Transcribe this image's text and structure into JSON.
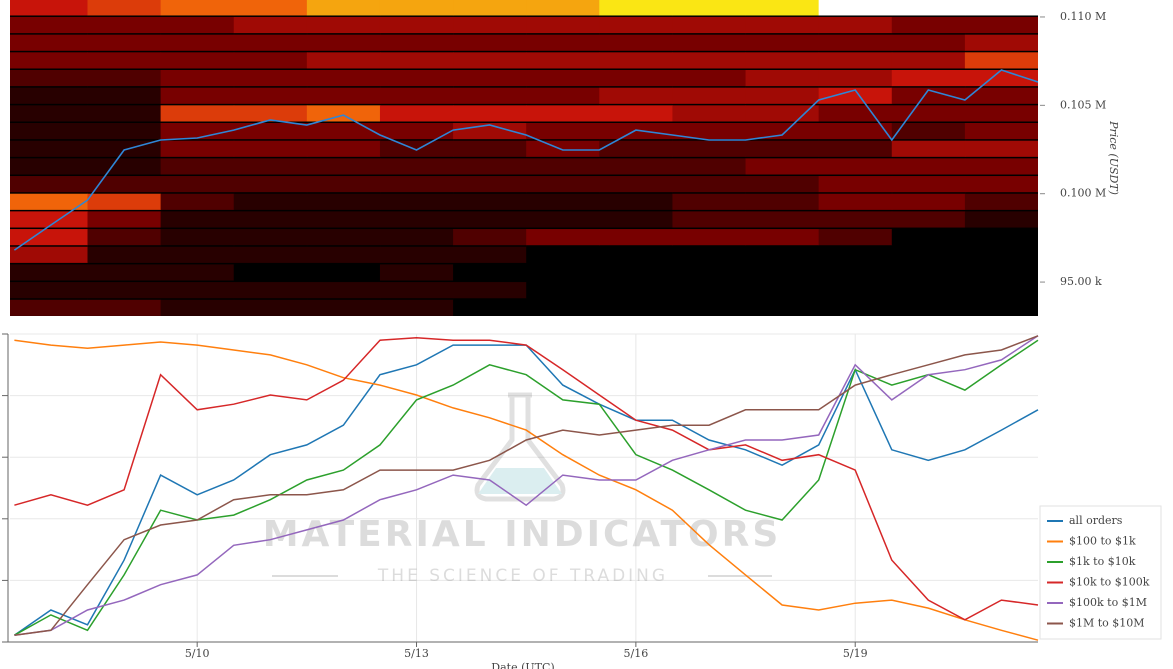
{
  "chart_data": [
    {
      "type": "heatmap",
      "y_label": "Price (USDT)",
      "xlim": [
        7.44,
        21.5
      ],
      "ylim": [
        93080,
        110960
      ],
      "yticks": [
        {
          "value": 95000,
          "label": "95.00 k"
        },
        {
          "value": 100000,
          "label": "0.100 M"
        },
        {
          "value": 105000,
          "label": "0.105 M"
        },
        {
          "value": 110000,
          "label": "0.110 M"
        }
      ],
      "x_bins": [
        7.44,
        8.5,
        9.5,
        10.5,
        11.5,
        12.5,
        13.5,
        14.5,
        15.5,
        16.5,
        17.5,
        18.5,
        19.5,
        20.5,
        21.5
      ],
      "y_bins": [
        93000,
        94000,
        95000,
        96000,
        97000,
        98000,
        99000,
        100000,
        101000,
        102000,
        103000,
        104000,
        105000,
        106000,
        107000,
        108000,
        109000,
        110000,
        111000
      ],
      "values": [
        [
          2,
          2,
          1,
          1,
          1,
          1,
          0,
          0,
          0,
          0,
          0,
          0,
          0,
          0
        ],
        [
          1,
          1,
          1,
          1,
          1,
          1,
          1,
          0,
          0,
          0,
          0,
          0,
          0,
          0
        ],
        [
          1,
          1,
          1,
          0,
          0,
          1,
          0,
          0,
          0,
          0,
          0,
          0,
          0,
          0
        ],
        [
          4,
          1,
          1,
          1,
          1,
          1,
          1,
          0,
          0,
          0,
          0,
          0,
          0,
          0
        ],
        [
          5,
          2,
          1,
          1,
          1,
          1,
          2,
          3,
          3,
          3,
          3,
          2,
          0,
          0
        ],
        [
          5,
          3,
          1,
          1,
          1,
          1,
          1,
          1,
          1,
          2,
          2,
          2,
          2,
          1
        ],
        [
          7,
          6,
          2,
          1,
          1,
          1,
          1,
          1,
          1,
          2,
          2,
          3,
          3,
          2
        ],
        [
          2,
          2,
          2,
          2,
          2,
          2,
          2,
          2,
          2,
          2,
          2,
          3,
          3,
          3
        ],
        [
          1,
          1,
          2,
          2,
          2,
          2,
          2,
          2,
          2,
          2,
          3,
          3,
          3,
          3
        ],
        [
          1,
          1,
          3,
          3,
          3,
          2,
          2,
          3,
          2,
          2,
          2,
          2,
          4,
          4
        ],
        [
          1,
          1,
          3,
          3,
          3,
          3,
          4,
          3,
          3,
          3,
          3,
          3,
          2,
          3
        ],
        [
          1,
          1,
          6,
          6,
          7,
          5,
          5,
          5,
          5,
          4,
          4,
          3,
          3,
          3
        ],
        [
          1,
          1,
          3,
          3,
          3,
          3,
          3,
          3,
          4,
          4,
          4,
          5,
          3,
          3
        ],
        [
          2,
          2,
          3,
          3,
          3,
          3,
          3,
          3,
          3,
          3,
          4,
          4,
          5,
          5
        ],
        [
          3,
          3,
          3,
          3,
          4,
          4,
          4,
          4,
          4,
          4,
          4,
          4,
          4,
          6
        ],
        [
          3,
          3,
          3,
          3,
          3,
          3,
          3,
          3,
          3,
          3,
          3,
          3,
          3,
          4
        ],
        [
          3,
          3,
          3,
          4,
          4,
          4,
          4,
          4,
          4,
          4,
          4,
          4,
          3,
          3
        ],
        [
          5,
          6,
          7,
          7,
          8,
          8,
          8,
          8,
          9,
          9,
          9,
          10,
          10,
          10
        ]
      ],
      "value_max": 10,
      "line": {
        "color": "#2f86d6",
        "x": [
          7.5,
          8,
          8.5,
          9,
          9.5,
          10,
          10.5,
          11,
          11.5,
          12,
          12.5,
          13,
          13.5,
          14,
          14.5,
          15,
          15.5,
          16,
          16.5,
          17,
          17.5,
          18,
          18.5,
          19,
          19.5,
          20,
          20.5,
          21,
          21.5
        ],
        "values": [
          96810,
          98230,
          99640,
          102470,
          103040,
          103150,
          103600,
          104170,
          103890,
          104450,
          103320,
          102470,
          103600,
          103890,
          103320,
          102470,
          102470,
          103600,
          103320,
          103040,
          103040,
          103320,
          105300,
          105870,
          103040,
          105870,
          105300,
          107000,
          106320
        ]
      }
    },
    {
      "type": "line",
      "x_label": "Date (UTC)",
      "legend": "right",
      "xlim": [
        7.44,
        21.5
      ],
      "ylim": [
        0,
        5
      ],
      "yticks": [
        0,
        1,
        2,
        3,
        4,
        5
      ],
      "grid": true,
      "xticks": [
        {
          "value": 10,
          "label": "5/10"
        },
        {
          "value": 13,
          "label": "5/13"
        },
        {
          "value": 16,
          "label": "5/16"
        },
        {
          "value": 19,
          "label": "5/19"
        }
      ],
      "watermark": {
        "title": "MATERIAL INDICATORS",
        "subtitle": "THE SCIENCE OF TRADING"
      },
      "x": [
        7.5,
        8,
        8.5,
        9,
        9.5,
        10,
        10.5,
        11,
        11.5,
        12,
        12.5,
        13,
        13.5,
        14,
        14.5,
        15,
        15.5,
        16,
        16.5,
        17,
        17.5,
        18,
        18.5,
        19,
        19.5,
        20,
        20.5,
        21,
        21.5
      ],
      "series": [
        {
          "name": "all orders",
          "color": "#1f77b4",
          "values": [
            0.11,
            0.52,
            0.28,
            1.33,
            2.71,
            2.39,
            2.63,
            3.04,
            3.2,
            3.52,
            4.34,
            4.5,
            4.82,
            4.82,
            4.82,
            4.17,
            3.86,
            3.6,
            3.6,
            3.28,
            3.12,
            2.87,
            3.2,
            4.42,
            3.12,
            2.95,
            3.12,
            3.44,
            3.77
          ]
        },
        {
          "name": "$100 to $1k",
          "color": "#ff7f0e",
          "values": [
            4.9,
            4.82,
            4.77,
            4.82,
            4.87,
            4.82,
            4.74,
            4.66,
            4.5,
            4.29,
            4.17,
            4.01,
            3.8,
            3.64,
            3.44,
            3.04,
            2.71,
            2.47,
            2.14,
            1.58,
            1.09,
            0.6,
            0.52,
            0.63,
            0.68,
            0.55,
            0.36,
            0.19,
            0.03
          ]
        },
        {
          "name": "$1k to $10k",
          "color": "#2ca02c",
          "values": [
            0.11,
            0.44,
            0.19,
            1.09,
            2.14,
            1.98,
            2.06,
            2.31,
            2.63,
            2.79,
            3.2,
            3.93,
            4.17,
            4.5,
            4.34,
            3.93,
            3.86,
            3.04,
            2.79,
            2.47,
            2.14,
            1.98,
            2.63,
            4.42,
            4.17,
            4.34,
            4.09,
            4.5,
            4.9
          ]
        },
        {
          "name": "$10k to $100k",
          "color": "#d62728",
          "values": [
            2.22,
            2.39,
            2.22,
            2.47,
            4.34,
            3.77,
            3.86,
            4.01,
            3.93,
            4.25,
            4.9,
            4.94,
            4.9,
            4.9,
            4.82,
            4.42,
            4.01,
            3.6,
            3.44,
            3.12,
            3.2,
            2.95,
            3.04,
            2.79,
            1.33,
            0.68,
            0.36,
            0.68,
            0.6
          ]
        },
        {
          "name": "$100k to $1M",
          "color": "#9467bd",
          "values": [
            0.11,
            0.19,
            0.52,
            0.68,
            0.93,
            1.09,
            1.57,
            1.66,
            1.82,
            1.98,
            2.31,
            2.47,
            2.71,
            2.63,
            2.22,
            2.71,
            2.63,
            2.63,
            2.95,
            3.12,
            3.28,
            3.28,
            3.36,
            4.5,
            3.93,
            4.34,
            4.42,
            4.58,
            4.97
          ]
        },
        {
          "name": "$1M to $10M",
          "color": "#8c564b",
          "values": [
            0.11,
            0.19,
            0.93,
            1.66,
            1.9,
            1.98,
            2.31,
            2.39,
            2.39,
            2.47,
            2.79,
            2.79,
            2.79,
            2.95,
            3.28,
            3.44,
            3.36,
            3.44,
            3.52,
            3.52,
            3.77,
            3.77,
            3.77,
            4.17,
            4.34,
            4.5,
            4.66,
            4.74,
            4.97
          ]
        }
      ]
    }
  ]
}
